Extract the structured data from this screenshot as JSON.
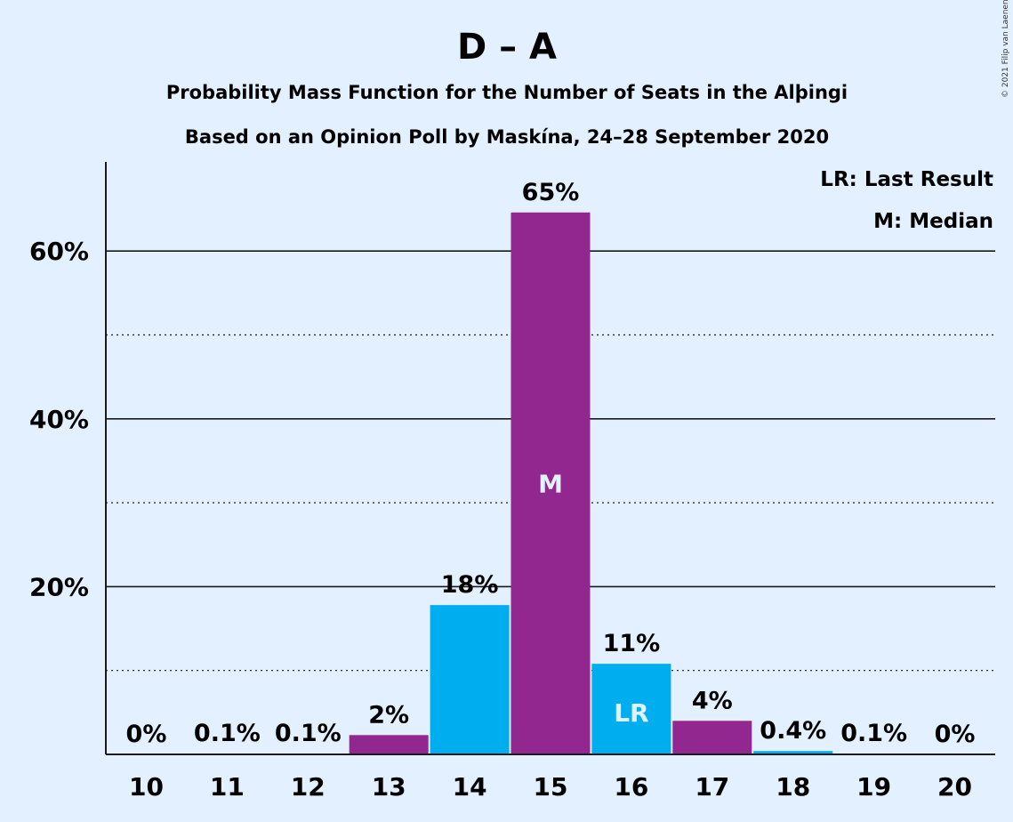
{
  "chart_data": {
    "type": "bar",
    "title": "D – A",
    "subtitle_1": "Probability Mass Function for the Number of Seats in the Alþingi",
    "subtitle_2": "Based on an Opinion Poll by Maskína, 24–28 September 2020",
    "copyright": "© 2021 Filip van Laenen",
    "categories": [
      "10",
      "11",
      "12",
      "13",
      "14",
      "15",
      "16",
      "17",
      "18",
      "19",
      "20"
    ],
    "values": [
      0,
      0.1,
      0.1,
      2.3,
      17.8,
      64.6,
      10.8,
      4.0,
      0.4,
      0.1,
      0
    ],
    "value_labels": [
      "0%",
      "0.1%",
      "0.1%",
      "2%",
      "18%",
      "65%",
      "11%",
      "4%",
      "0.4%",
      "0.1%",
      "0%"
    ],
    "bar_colors": [
      "#92278f",
      "#92278f",
      "#92278f",
      "#92278f",
      "#00aeef",
      "#92278f",
      "#00aeef",
      "#92278f",
      "#00aeef",
      "#92278f",
      "#92278f"
    ],
    "inbar_markers": [
      {
        "category": "15",
        "text": "M"
      },
      {
        "category": "16",
        "text": "LR"
      }
    ],
    "y_ticks": [
      {
        "value": 20,
        "label": "20%"
      },
      {
        "value": 40,
        "label": "40%"
      },
      {
        "value": 60,
        "label": "60%"
      }
    ],
    "y_minor_gridlines": [
      10,
      30,
      50
    ],
    "ylim": [
      0,
      70
    ],
    "legend": {
      "placement": "top-right",
      "items": [
        "LR: Last Result",
        "M: Median"
      ]
    },
    "colors": {
      "background": "#e2f0ff",
      "purple": "#92278f",
      "blue": "#00aeef"
    }
  }
}
